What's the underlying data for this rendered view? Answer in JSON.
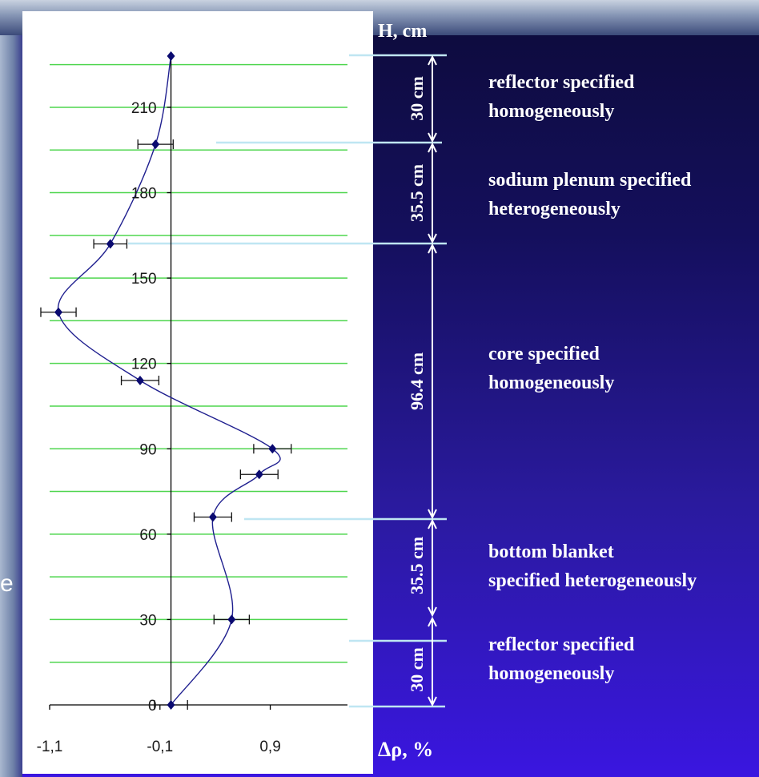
{
  "chart_data": {
    "type": "line",
    "ylabel": "H, cm",
    "xlabel": "Δρ, %",
    "x_tick_labels": [
      "-1,1",
      "-0,1",
      "0,9"
    ],
    "y_tick_labels": [
      "0",
      "30",
      "60",
      "90",
      "120",
      "150",
      "180",
      "210"
    ],
    "xlim": [
      -1.1,
      1.6
    ],
    "ylim": [
      0,
      228
    ],
    "grid": "horizontal",
    "series": [
      {
        "points": [
          {
            "x": 0.0,
            "y": 0
          },
          {
            "x": 0.55,
            "y": 30
          },
          {
            "x": 0.38,
            "y": 66
          },
          {
            "x": 0.8,
            "y": 81
          },
          {
            "x": 0.92,
            "y": 90
          },
          {
            "x": -0.28,
            "y": 114
          },
          {
            "x": -1.02,
            "y": 138
          },
          {
            "x": -0.55,
            "y": 162
          },
          {
            "x": -0.14,
            "y": 197
          },
          {
            "x": 0.0,
            "y": 228
          }
        ],
        "xerr": [
          0.15,
          0.16,
          0.17,
          0.17,
          0.17,
          0.17,
          0.16,
          0.15,
          0.16,
          0
        ]
      }
    ]
  },
  "annotations": {
    "zones": [
      {
        "lines": [
          "reflector specified",
          "homogeneously"
        ]
      },
      {
        "lines": [
          "sodium plenum specified",
          "heterogeneously"
        ]
      },
      {
        "lines": [
          "core specified",
          "homogeneously"
        ]
      },
      {
        "lines": [
          "bottom blanket",
          "specified heterogeneously"
        ]
      },
      {
        "lines": [
          "reflector specified",
          "homogeneously"
        ]
      }
    ],
    "dimensions": [
      "30 cm",
      "35.5 cm",
      "96.4 cm",
      "35.5 cm",
      "30 cm"
    ]
  },
  "background_fragment": "e",
  "colors": {
    "grid": "#4fd64f",
    "curve": "#1f1f8f",
    "marker": "#0a0a70",
    "boundary": "#bfe6f2",
    "panel": "#ffffff"
  }
}
